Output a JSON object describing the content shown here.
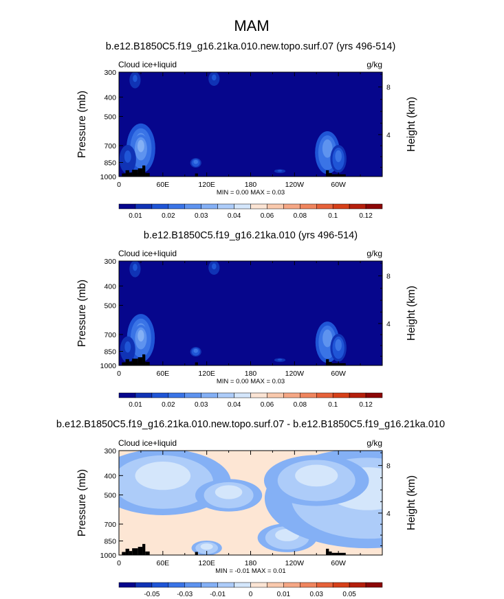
{
  "figure_title": "MAM",
  "chart_data": [
    {
      "type": "heatmap",
      "title": "b.e12.B1850C5.f19_g16.21ka.010.new.topo.surf.07 (yrs 496-514)",
      "left_label": "Cloud ice+liquid",
      "right_label": "g/kg",
      "ylabel": "Pressure (mb)",
      "y2label": "Height (km)",
      "x_ticks": [
        "0",
        "60E",
        "120E",
        "180",
        "120W",
        "60W"
      ],
      "y_ticks": [
        "300",
        "400",
        "500",
        "700",
        "850",
        "1000"
      ],
      "y2_ticks": [
        "8",
        "4"
      ],
      "stats": "MIN =  0.00  MAX =  0.03",
      "colorbar_labels": [
        "0.01",
        "0.02",
        "0.03",
        "0.04",
        "0.06",
        "0.08",
        "0.1",
        "0.12"
      ],
      "colorbar_colors": [
        "#06068c",
        "#1033b5",
        "#1f55d6",
        "#3a74e6",
        "#5e93ef",
        "#84b0f5",
        "#adccf9",
        "#d4e6fb",
        "#fbe4d4",
        "#f9c9ad",
        "#f5a785",
        "#ef855e",
        "#e6623a",
        "#d64019",
        "#b51f0c",
        "#8c0707"
      ],
      "background": "#06068c",
      "features": [
        {
          "lon": 30,
          "p_top": 550,
          "p_bot": 950,
          "level": 4
        },
        {
          "lon": 30,
          "p_top": 620,
          "p_bot": 850,
          "level": 5
        },
        {
          "lon": 12,
          "p_top": 700,
          "p_bot": 960,
          "level": 2
        },
        {
          "lon": 105,
          "p_top": 810,
          "p_bot": 900,
          "level": 3
        },
        {
          "lon": 285,
          "p_top": 600,
          "p_bot": 960,
          "level": 4
        },
        {
          "lon": 300,
          "p_top": 700,
          "p_bot": 950,
          "level": 3
        },
        {
          "lon": 22,
          "p_top": 300,
          "p_bot": 360,
          "level": 2
        },
        {
          "lon": 130,
          "p_top": 300,
          "p_bot": 350,
          "level": 2
        },
        {
          "lon": 220,
          "p_top": 920,
          "p_bot": 960,
          "level": 2
        }
      ]
    },
    {
      "type": "heatmap",
      "title": "b.e12.B1850C5.f19_g16.21ka.010 (yrs 496-514)",
      "left_label": "Cloud ice+liquid",
      "right_label": "g/kg",
      "ylabel": "Pressure (mb)",
      "y2label": "Height (km)",
      "x_ticks": [
        "0",
        "60E",
        "120E",
        "180",
        "120W",
        "60W"
      ],
      "y_ticks": [
        "300",
        "400",
        "500",
        "700",
        "850",
        "1000"
      ],
      "y2_ticks": [
        "8",
        "4"
      ],
      "stats": "MIN =  0.00  MAX =  0.03",
      "colorbar_labels": [
        "0.01",
        "0.02",
        "0.03",
        "0.04",
        "0.06",
        "0.08",
        "0.1",
        "0.12"
      ],
      "colorbar_colors": [
        "#06068c",
        "#1033b5",
        "#1f55d6",
        "#3a74e6",
        "#5e93ef",
        "#84b0f5",
        "#adccf9",
        "#d4e6fb",
        "#fbe4d4",
        "#f9c9ad",
        "#f5a785",
        "#ef855e",
        "#e6623a",
        "#d64019",
        "#b51f0c",
        "#8c0707"
      ],
      "background": "#06068c",
      "features": [
        {
          "lon": 30,
          "p_top": 560,
          "p_bot": 950,
          "level": 4
        },
        {
          "lon": 30,
          "p_top": 630,
          "p_bot": 850,
          "level": 5
        },
        {
          "lon": 12,
          "p_top": 720,
          "p_bot": 960,
          "level": 2
        },
        {
          "lon": 105,
          "p_top": 810,
          "p_bot": 900,
          "level": 3
        },
        {
          "lon": 285,
          "p_top": 610,
          "p_bot": 960,
          "level": 4
        },
        {
          "lon": 300,
          "p_top": 700,
          "p_bot": 950,
          "level": 3
        },
        {
          "lon": 22,
          "p_top": 300,
          "p_bot": 360,
          "level": 2
        },
        {
          "lon": 130,
          "p_top": 300,
          "p_bot": 350,
          "level": 2
        },
        {
          "lon": 220,
          "p_top": 920,
          "p_bot": 960,
          "level": 2
        }
      ]
    },
    {
      "type": "heatmap",
      "title": "b.e12.B1850C5.f19_g16.21ka.010.new.topo.surf.07 - b.e12.B1850C5.f19_g16.21ka.010",
      "left_label": "Cloud ice+liquid",
      "right_label": "g/kg",
      "ylabel": "Pressure (mb)",
      "y2label": "Height (km)",
      "x_ticks": [
        "0",
        "60E",
        "120E",
        "180",
        "120W",
        "60W"
      ],
      "y_ticks": [
        "300",
        "400",
        "500",
        "700",
        "850",
        "1000"
      ],
      "y2_ticks": [
        "8",
        "4"
      ],
      "stats": "MIN = -0.01  MAX =  0.01",
      "colorbar_labels": [
        "-0.05",
        "-0.03",
        "-0.01",
        "0",
        "0.01",
        "0.03",
        "0.05"
      ],
      "colorbar_colors": [
        "#06068c",
        "#1033b5",
        "#1f55d6",
        "#3a74e6",
        "#5e93ef",
        "#84b0f5",
        "#adccf9",
        "#d4e6fb",
        "#fbe4d4",
        "#f9c9ad",
        "#f5a785",
        "#ef855e",
        "#e6623a",
        "#d64019",
        "#b51f0c",
        "#8c0707"
      ],
      "background": "#fde6d4",
      "features": [
        {
          "lon": 60,
          "p_top": 300,
          "p_bot": 620,
          "level": 7
        },
        {
          "lon": 150,
          "p_top": 420,
          "p_bot": 600,
          "level": 7
        },
        {
          "lon": 230,
          "p_top": 700,
          "p_bot": 960,
          "level": 7
        },
        {
          "lon": 340,
          "p_top": 300,
          "p_bot": 900,
          "level": 7
        },
        {
          "lon": 120,
          "p_top": 850,
          "p_bot": 1000,
          "level": 7
        },
        {
          "lon": 270,
          "p_top": 320,
          "p_bot": 560,
          "level": 7
        }
      ]
    }
  ],
  "topography": {
    "segments": [
      {
        "lon0": 4,
        "lon1": 9,
        "p": 965
      },
      {
        "lon0": 9,
        "lon1": 14,
        "p": 930
      },
      {
        "lon0": 14,
        "lon1": 18,
        "p": 955
      },
      {
        "lon0": 18,
        "lon1": 26,
        "p": 925
      },
      {
        "lon0": 26,
        "lon1": 32,
        "p": 910
      },
      {
        "lon0": 32,
        "lon1": 36,
        "p": 880
      },
      {
        "lon0": 36,
        "lon1": 42,
        "p": 960
      },
      {
        "lon0": 104,
        "lon1": 108,
        "p": 965
      },
      {
        "lon0": 283,
        "lon1": 287,
        "p": 930
      },
      {
        "lon0": 287,
        "lon1": 291,
        "p": 960
      },
      {
        "lon0": 291,
        "lon1": 310,
        "p": 975
      }
    ]
  }
}
